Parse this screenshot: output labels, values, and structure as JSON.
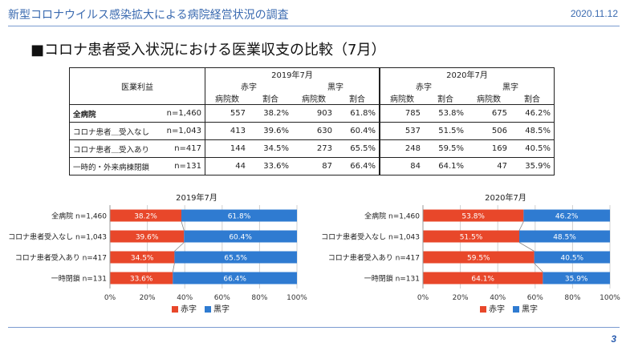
{
  "header": {
    "title": "新型コロナウイルス感染拡大による病院経営状況の調査",
    "date": "2020.11.12"
  },
  "slide_title": "■コロナ患者受入状況における医業収支の比較（7月）",
  "table": {
    "corner_label": "医業利益",
    "periods": [
      "2019年7月",
      "2020年7月"
    ],
    "groups": [
      "赤字",
      "黒字"
    ],
    "col_labels": [
      "病院数",
      "割合"
    ],
    "rows": [
      {
        "label": "全病院",
        "n": "n=1,460",
        "cells": [
          "557",
          "38.2%",
          "903",
          "61.8%",
          "785",
          "53.8%",
          "675",
          "46.2%"
        ]
      },
      {
        "label": "コロナ患者＿受入なし",
        "n": "n=1,043",
        "cells": [
          "413",
          "39.6%",
          "630",
          "60.4%",
          "537",
          "51.5%",
          "506",
          "48.5%"
        ]
      },
      {
        "label": "コロナ患者＿受入あり",
        "n": "n=417",
        "cells": [
          "144",
          "34.5%",
          "273",
          "65.5%",
          "248",
          "59.5%",
          "169",
          "40.5%"
        ]
      },
      {
        "label": "一時的・外来病棟閉鎖",
        "n": "n=131",
        "cells": [
          "44",
          "33.6%",
          "87",
          "66.4%",
          "84",
          "64.1%",
          "47",
          "35.9%"
        ]
      }
    ]
  },
  "legend": {
    "deficit": "赤字",
    "surplus": "黒字"
  },
  "colors": {
    "deficit": "#e8472a",
    "surplus": "#2f7bd1"
  },
  "chart_data": [
    {
      "type": "bar",
      "stacked": "horizontal-100%",
      "title": "2019年7月",
      "categories": [
        "全病院 n=1,460",
        "コロナ患者受入なし n=1,043",
        "コロナ患者受入あり n=417",
        "一時閉鎖 n=131"
      ],
      "series": [
        {
          "name": "赤字",
          "values": [
            38.2,
            39.6,
            34.5,
            33.6
          ]
        },
        {
          "name": "黒字",
          "values": [
            61.8,
            60.4,
            65.5,
            66.4
          ]
        }
      ],
      "xticks": [
        "0%",
        "20%",
        "40%",
        "60%",
        "80%",
        "100%"
      ],
      "xlim": [
        0,
        100
      ],
      "legend_position": "bottom"
    },
    {
      "type": "bar",
      "stacked": "horizontal-100%",
      "title": "2020年7月",
      "categories": [
        "全病院 n=1,460",
        "コロナ患者受入なし n=1,043",
        "コロナ患者受入あり n=417",
        "一時閉鎖 n=131"
      ],
      "series": [
        {
          "name": "赤字",
          "values": [
            53.8,
            51.5,
            59.5,
            64.1
          ]
        },
        {
          "name": "黒字",
          "values": [
            46.2,
            48.5,
            40.5,
            35.9
          ]
        }
      ],
      "xticks": [
        "0%",
        "20%",
        "40%",
        "60%",
        "80%",
        "100%"
      ],
      "xlim": [
        0,
        100
      ],
      "legend_position": "bottom"
    }
  ],
  "page_number": "3"
}
